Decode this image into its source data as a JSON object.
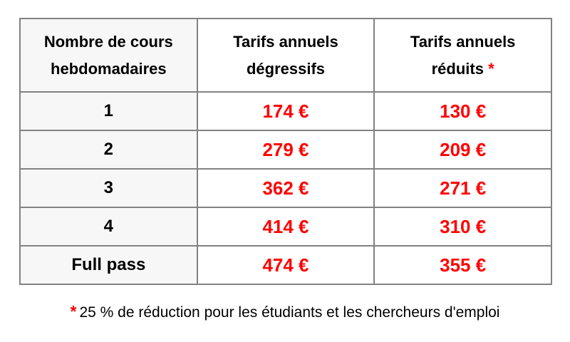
{
  "table": {
    "headers": [
      {
        "line1": "Nombre de cours",
        "line2": "hebdomadaires"
      },
      {
        "line1": "Tarifs annuels",
        "line2": "dégressifs"
      },
      {
        "line1": "Tarifs annuels",
        "line2": "réduits",
        "marker": "*"
      }
    ],
    "rows": [
      {
        "courses": "1",
        "degressive": "174 €",
        "reduced": "130 €"
      },
      {
        "courses": "2",
        "degressive": "279 €",
        "reduced": "209 €"
      },
      {
        "courses": "3",
        "degressive": "362 €",
        "reduced": "271 €"
      },
      {
        "courses": "4",
        "degressive": "414 €",
        "reduced": "310 €"
      },
      {
        "courses": "Full pass",
        "degressive": "474 €",
        "reduced": "355 €"
      }
    ]
  },
  "footnote": {
    "marker": "*",
    "text": "25 % de réduction pour les étudiants et les chercheurs d'emploi"
  },
  "colors": {
    "price_red": "#ff0000",
    "marker_red": "#ff0000",
    "border_gray": "#828282",
    "shaded_cell_bg": "#f7f7f7",
    "text_black": "#000000",
    "page_bg": "#ffffff"
  }
}
